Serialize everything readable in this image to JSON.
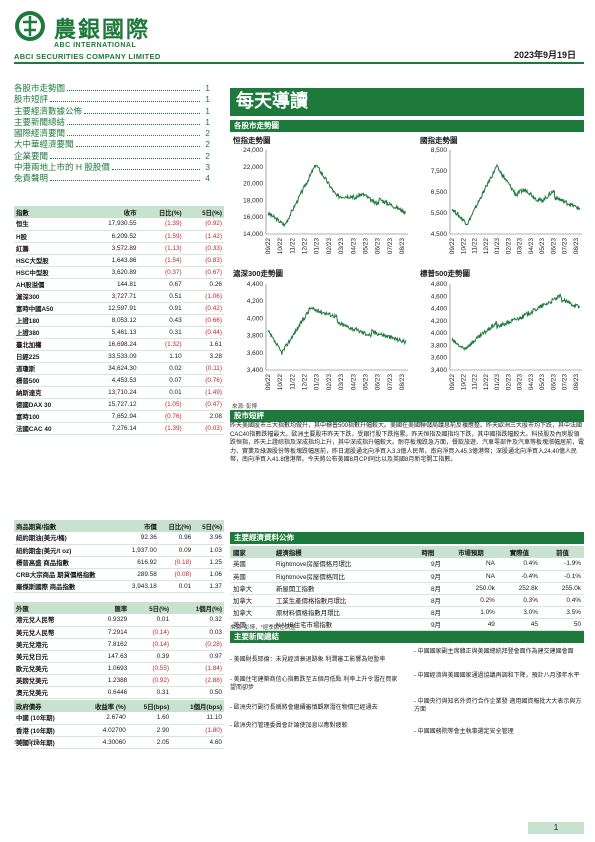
{
  "header": {
    "logo_cn": "農銀國際",
    "logo_en1": "ABC INTERNATIONAL",
    "logo_en2": "ABCI SECURITIES COMPANY LIMITED",
    "date": "2023年9月19日"
  },
  "toc": [
    {
      "label": "各股市走勢圖",
      "page": "1"
    },
    {
      "label": "股市短評",
      "page": "1"
    },
    {
      "label": "主要經濟數據公佈",
      "page": "1"
    },
    {
      "label": "主要新聞總結",
      "page": "1"
    },
    {
      "label": "國際經濟要聞",
      "page": "2"
    },
    {
      "label": "大中華經濟要聞",
      "page": "2"
    },
    {
      "label": "企業要聞",
      "page": "2"
    },
    {
      "label": "中港兩地上市的 H 股股價",
      "page": "3"
    },
    {
      "label": "免責聲明",
      "page": "4"
    }
  ],
  "indices": {
    "headers": [
      "指數",
      "收市",
      "日比(%)",
      "5日(%)"
    ],
    "rows": [
      [
        "恒生",
        "17,930.55",
        "(1.39)",
        "(0.92)"
      ],
      [
        "H股",
        "6,209.52",
        "(1.59)",
        "(1.42)"
      ],
      [
        "紅籌",
        "3,572.89",
        "(1.13)",
        "(0.33)"
      ],
      [
        "HSC大型股",
        "1,643.86",
        "(1.54)",
        "(0.83)"
      ],
      [
        "HSC中型股",
        "3,620.89",
        "(0.37)",
        "(0.67)"
      ],
      [
        "AH股溢價",
        "144.81",
        "0.67",
        "0.26"
      ],
      [
        "滬深300",
        "3,727.71",
        "0.51",
        "(1.06)"
      ],
      [
        "富時中國A50",
        "12,597.91",
        "0.91",
        "(0.42)"
      ],
      [
        "上證180",
        "8,053.12",
        "0.43",
        "(0.66)"
      ],
      [
        "上證380",
        "5,461.13",
        "0.31",
        "(0.44)"
      ],
      [
        "臺北加權",
        "16,698.24",
        "(1.32)",
        "1.61"
      ],
      [
        "日經225",
        "33,533.09",
        "1.10",
        "3.28"
      ],
      [
        "道瓊斯",
        "34,624.30",
        "0.02",
        "(0.11)"
      ],
      [
        "標普500",
        "4,453.53",
        "0.07",
        "(0.76)"
      ],
      [
        "納斯達克",
        "13,710.24",
        "0.01",
        "(1.49)"
      ],
      [
        "德國DAX 30",
        "15,727.12",
        "(1.05)",
        "(0.47)"
      ],
      [
        "富時100",
        "7,652.94",
        "(0.76)",
        "2.08"
      ],
      [
        "法國CAC 40",
        "7,276.14",
        "(1.39)",
        "(0.03)"
      ]
    ]
  },
  "commodities": {
    "headers": [
      "商品期貨/指數",
      "市價",
      "日比(%)",
      "5日(%)"
    ],
    "rows": [
      [
        "紐約期油(美元/桶)",
        "92.36",
        "0.96",
        "3.96"
      ],
      [
        "紐約期金(美元/t oz)",
        "1,937.00",
        "0.09",
        "1.03"
      ],
      [
        "標普高盛 商品指數",
        "616.92",
        "(0.18)",
        "1.25"
      ],
      [
        "CRB大宗商品 期貨價格指數",
        "289.58",
        "(0.08)",
        "1.06"
      ],
      [
        "羅傑斯國際 商品指數",
        "3,943.18",
        "0.01",
        "1.37"
      ]
    ]
  },
  "fx": {
    "headers": [
      "外匯",
      "匯率",
      "5日(%)",
      "1個月(%)"
    ],
    "rows": [
      [
        "港元兌人民幣",
        "0.9329",
        "0.01",
        "0.32"
      ],
      [
        "美元兌人民幣",
        "7.2914",
        "(0.14)",
        "0.03"
      ],
      [
        "美元兌港元",
        "7.8162",
        "(0.14)",
        "(0.28)"
      ],
      [
        "美元兌日元",
        "147.63",
        "0.39",
        "0.97"
      ],
      [
        "歐元兌美元",
        "1.0693",
        "(0.55)",
        "(1.84)"
      ],
      [
        "英鎊兌美元",
        "1.2388",
        "(0.92)",
        "(2.88)"
      ],
      [
        "澳元兌美元",
        "0.6446",
        "0.31",
        "0.50"
      ]
    ]
  },
  "bonds": {
    "headers": [
      "政府債券",
      "收益率 (%)",
      "5日(bps)",
      "1個月(bps)"
    ],
    "rows": [
      [
        "中國 (10年期)",
        "2.6740",
        "1.60",
        "11.10"
      ],
      [
        "香港 (10年期)",
        "4.02700",
        "2.90",
        "(1.80)"
      ],
      [
        "美國 (10年期)",
        "4.30060",
        "2.05",
        "4.60"
      ]
    ],
    "source": "來源: 彭博"
  },
  "main": {
    "title": "每天導讀",
    "charts_section": "各股市走勢圖",
    "chart_source": "來源: 彭博",
    "commentary_title": "股市短評",
    "commentary": "昨天美國股市三大指數均做升，其中標普500指數升幅較大。美國在美國聯儲局議息前反複應整。昨天歐洲三大股市均下跌，其中法國CAC40指數跌幅最大。歐洲主要股市昨天下跌，受銀行股下跌拖累。昨天恒指及國指均下跌，其中國指跌幅較大。科技股及內房股領跌恒指，昨天上證綜指及深成指均上升，其中深成指升幅較大。耐存板塊跌急方面，餐飲旅遊、汽車零部件及汽車等板塊漲幅居前，電力、實業及綠源股份等板塊跌幅居前，昨日滬股通北向淨買入3.3億人民幣，南向淨買入45.3億港幣；深股通北向淨買入24.40億人民幣，南向淨買入41.8億港幣。今天將公布美國8月CPI同比以及英國8月新宅開工指數。",
    "econ_title": "主要經濟資料公佈",
    "econ_headers": [
      "國家",
      "經濟指標",
      "時間",
      "市場預期",
      "實際值",
      "前值"
    ],
    "econ_rows": [
      [
        "英國",
        "Rightmove房屋價格月環比",
        "9月",
        "NA",
        "0.4%",
        "-1.9%"
      ],
      [
        "英國",
        "Rightmove房屋價格同比",
        "9月",
        "NA",
        "-0.4%",
        "-0.1%"
      ],
      [
        "加拿大",
        "新屋開工指數",
        "8月",
        "250.0k",
        "252.8k",
        "255.0k"
      ],
      [
        "加拿大",
        "工業生產價格指數月環比",
        "8月",
        "0.2%",
        "0.3%",
        "0.4%"
      ],
      [
        "加拿大",
        "原材料價格指數月環比",
        "8月",
        "1.0%",
        "3.0%",
        "3.5%"
      ],
      [
        "美國",
        "NAHB住宅市場指數",
        "9月",
        "49",
        "45",
        "50"
      ]
    ],
    "econ_source": "來源: 彭博，*經季節性調整",
    "news_title": "主要新聞總結",
    "news_left": [
      "- 美國財長耶倫：未見經濟衰退跡象 利潤審工影響為短暫率",
      "- 美國住宅建築商信心指數跌至五個月低點 利率上升令潛在買家望而卻步",
      "- 歐洲央行副行長稱將會繼續審慎觀察潛在物價已經通去",
      "- 歐洲央行管理委員會計論使加息以應對疲軟"
    ],
    "news_right": [
      "- 中國國家副主席韓正與美國總統拜登會面作為建交建國會面",
      "- 中國經濟與美國國家通過協議再調和下降，預計八月漲年水平",
      "- 中國央行與知名外資行合作企業發 適用國資報批大大表示與方方面",
      "- 中國國務院等會主執事選定安全管理"
    ]
  },
  "charts": [
    {
      "title": "恒指走勢圖",
      "yticks": [
        "24,000",
        "22,000",
        "20,000",
        "18,000",
        "16,000",
        "14,000"
      ]
    },
    {
      "title": "國指走勢圖",
      "yticks": [
        "8,500",
        "7,500",
        "6,500",
        "5,500",
        "4,500"
      ]
    },
    {
      "title": "滬深300走勢圖",
      "yticks": [
        "4,400",
        "4,200",
        "4,000",
        "3,800",
        "3,600",
        "3,400"
      ]
    },
    {
      "title": "標普500走勢圖",
      "yticks": [
        "4,800",
        "4,600",
        "4,400",
        "4,200",
        "4,000",
        "3,800",
        "3,600",
        "3,400"
      ]
    }
  ],
  "chart_xticks": [
    "09/22",
    "10/22",
    "11/22",
    "12/22",
    "01/23",
    "02/23",
    "03/23",
    "04/23",
    "05/23",
    "06/23",
    "07/23",
    "08/23"
  ],
  "page_number": "1",
  "colors": {
    "brand_green": "#1e7a3c",
    "header_fill": "#c9e2cf",
    "negative": "#c0262d"
  }
}
